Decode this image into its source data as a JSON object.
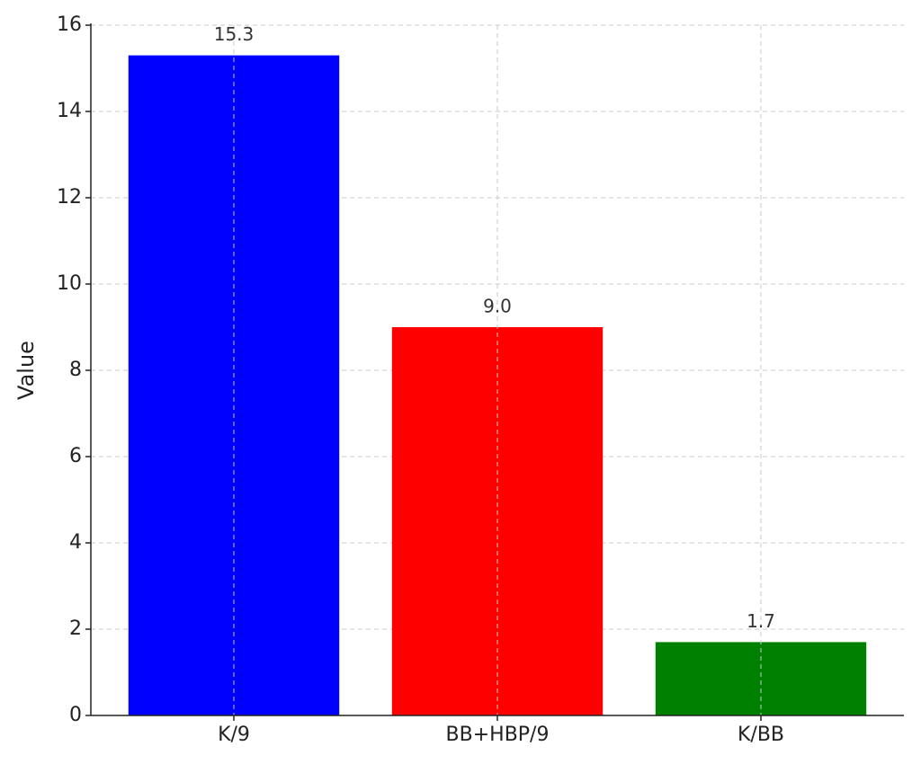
{
  "chart_data": {
    "type": "bar",
    "ylabel": "Value",
    "categories": [
      "K/9",
      "BB+HBP/9",
      "K/BB"
    ],
    "values": [
      15.3,
      9.0,
      1.7
    ],
    "value_labels": [
      "15.3",
      "9.0",
      "1.7"
    ],
    "colors": [
      "#0000ff",
      "#ff0000",
      "#008000"
    ],
    "ylim": [
      0,
      16
    ],
    "yticks": [
      0,
      2,
      4,
      6,
      8,
      10,
      12,
      14,
      16
    ],
    "grid": true
  }
}
